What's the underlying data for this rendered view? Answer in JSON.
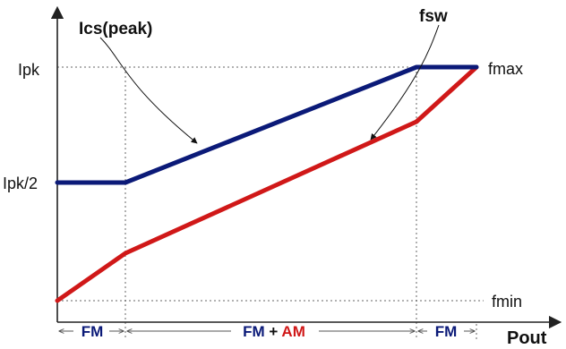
{
  "colors": {
    "ipk_curve": "#0b1a78",
    "fsw_curve": "#d01818",
    "axis": "#222222",
    "guide": "#555555",
    "region_fm": "#0b1a78",
    "region_am": "#d01818"
  },
  "labels": {
    "ics_peak": "Ics(peak)",
    "fsw": "fsw",
    "ipk": "Ipk",
    "ipk_half": "Ipk/2",
    "fmax": "fmax",
    "fmin": "fmin",
    "pout": "Pout"
  },
  "regions": {
    "left": "FM",
    "middle_fm": "FM",
    "middle_plus": " + ",
    "middle_am": "AM",
    "right": "FM"
  }
}
